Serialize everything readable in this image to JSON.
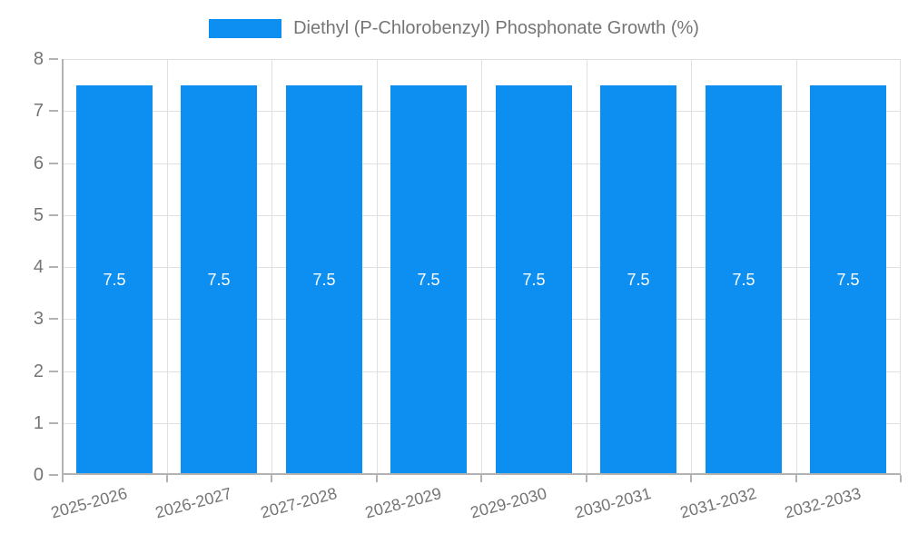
{
  "legend": {
    "label": "Diethyl (P-Chlorobenzyl) Phosphonate Growth (%)"
  },
  "colors": {
    "bar": "#0d8ff2",
    "grid": "#e0e0e0",
    "axis": "#b3b3b3",
    "text": "#757575",
    "bar_label": "#ffffff",
    "background": "#ffffff"
  },
  "chart_data": {
    "type": "bar",
    "title": "Diethyl (P-Chlorobenzyl) Phosphonate Growth (%)",
    "categories": [
      "2025-2026",
      "2026-2027",
      "2027-2028",
      "2028-2029",
      "2029-2030",
      "2030-2031",
      "2031-2032",
      "2032-2033"
    ],
    "values": [
      7.5,
      7.5,
      7.5,
      7.5,
      7.5,
      7.5,
      7.5,
      7.5
    ],
    "value_labels": [
      "7.5",
      "7.5",
      "7.5",
      "7.5",
      "7.5",
      "7.5",
      "7.5",
      "7.5"
    ],
    "xlabel": "",
    "ylabel": "",
    "ylim": [
      0,
      8
    ],
    "yticks": [
      0,
      1,
      2,
      3,
      4,
      5,
      6,
      7,
      8
    ],
    "grid": true,
    "legend_position": "top",
    "bar_color": "#0d8ff2",
    "value_label_color": "#ffffff"
  }
}
